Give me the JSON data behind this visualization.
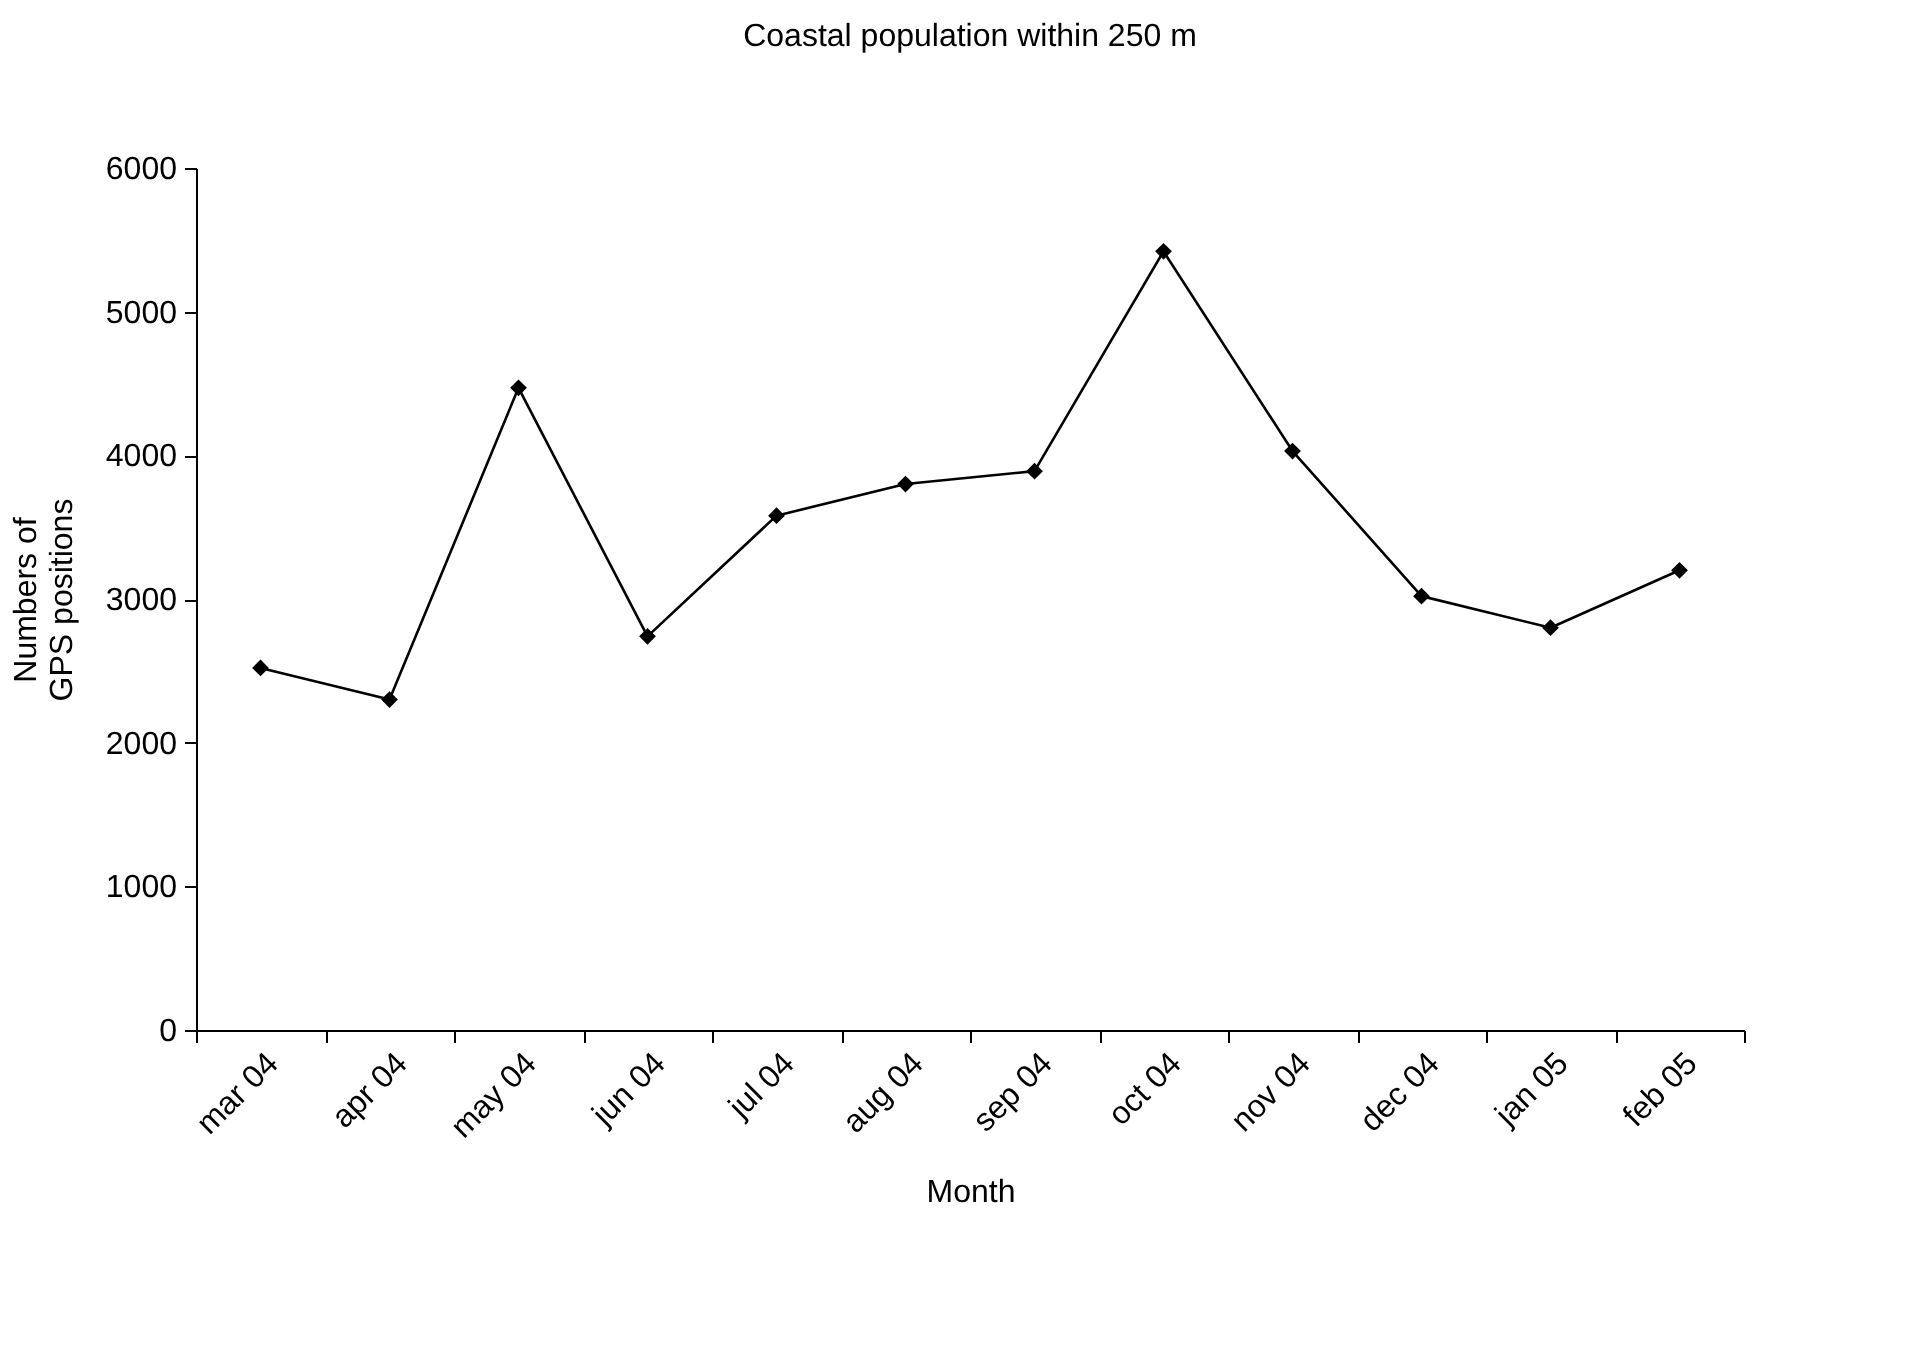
{
  "chart_data": {
    "type": "line",
    "title": "Coastal population within 250 m",
    "xlabel": "Month",
    "ylabel": "Numbers of\nGPS positions",
    "categories": [
      "mar 04",
      "apr 04",
      "may 04",
      "jun 04",
      "jul 04",
      "aug 04",
      "sep 04",
      "oct 04",
      "nov 04",
      "dec 04",
      "jan 05",
      "feb 05"
    ],
    "series": [
      {
        "color": "#000000",
        "values": [
          2520,
          2300,
          4470,
          2740,
          3580,
          3800,
          3890,
          5420,
          4030,
          3020,
          2800,
          3200
        ]
      }
    ],
    "ylim": [
      0,
      6000
    ],
    "yticks": [
      0,
      1000,
      2000,
      3000,
      4000,
      5000,
      6000
    ],
    "grid": false,
    "marker": "diamond",
    "line_style": "solid"
  }
}
